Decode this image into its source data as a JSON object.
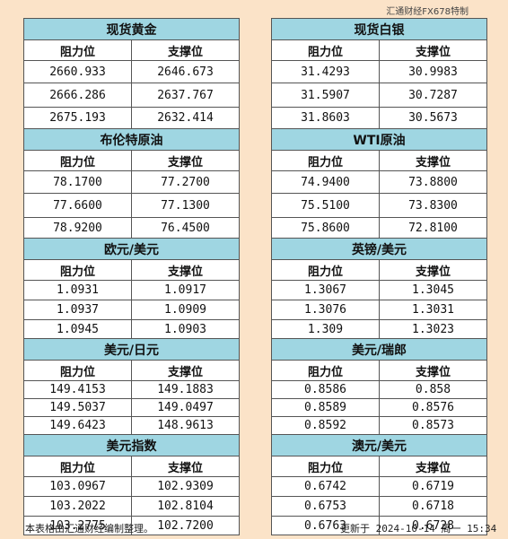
{
  "source_note": "汇通财经FX678特制",
  "headers": {
    "resistance": "阻力位",
    "support": "支撑位"
  },
  "left_panels": [
    {
      "title": "现货黄金",
      "rows": [
        [
          "2660.933",
          "2646.673"
        ],
        [
          "2666.286",
          "2637.767"
        ],
        [
          "2675.193",
          "2632.414"
        ]
      ]
    },
    {
      "title": "布伦特原油",
      "rows": [
        [
          "78.1700",
          "77.2700"
        ],
        [
          "77.6600",
          "77.1300"
        ],
        [
          "78.9200",
          "76.4500"
        ]
      ]
    },
    {
      "title": "欧元/美元",
      "rows": [
        [
          "1.0931",
          "1.0917"
        ],
        [
          "1.0937",
          "1.0909"
        ],
        [
          "1.0945",
          "1.0903"
        ]
      ]
    },
    {
      "title": "美元/日元",
      "rows": [
        [
          "149.4153",
          "149.1883"
        ],
        [
          "149.5037",
          "149.0497"
        ],
        [
          "149.6423",
          "148.9613"
        ]
      ]
    },
    {
      "title": "美元指数",
      "rows": [
        [
          "103.0967",
          "102.9309"
        ],
        [
          "103.2022",
          "102.8104"
        ],
        [
          "103.2775",
          "102.7200"
        ]
      ]
    }
  ],
  "right_panels": [
    {
      "title": "现货白银",
      "rows": [
        [
          "31.4293",
          "30.9983"
        ],
        [
          "31.5907",
          "30.7287"
        ],
        [
          "31.8603",
          "30.5673"
        ]
      ]
    },
    {
      "title": "WTI原油",
      "rows": [
        [
          "74.9400",
          "73.8800"
        ],
        [
          "75.5100",
          "73.8300"
        ],
        [
          "75.8600",
          "72.8100"
        ]
      ]
    },
    {
      "title": "英镑/美元",
      "rows": [
        [
          "1.3067",
          "1.3045"
        ],
        [
          "1.3076",
          "1.3031"
        ],
        [
          "1.309",
          "1.3023"
        ]
      ]
    },
    {
      "title": "美元/瑞郎",
      "rows": [
        [
          "0.8586",
          "0.858"
        ],
        [
          "0.8589",
          "0.8576"
        ],
        [
          "0.8592",
          "0.8573"
        ]
      ]
    },
    {
      "title": "澳元/美元",
      "rows": [
        [
          "0.6742",
          "0.6719"
        ],
        [
          "0.6753",
          "0.6718"
        ],
        [
          "0.6763",
          "0.6728"
        ]
      ]
    }
  ],
  "footer": {
    "left": "本表格由汇通财经编制整理。",
    "right": "更新于 2024-10-14 周一 15:34"
  }
}
